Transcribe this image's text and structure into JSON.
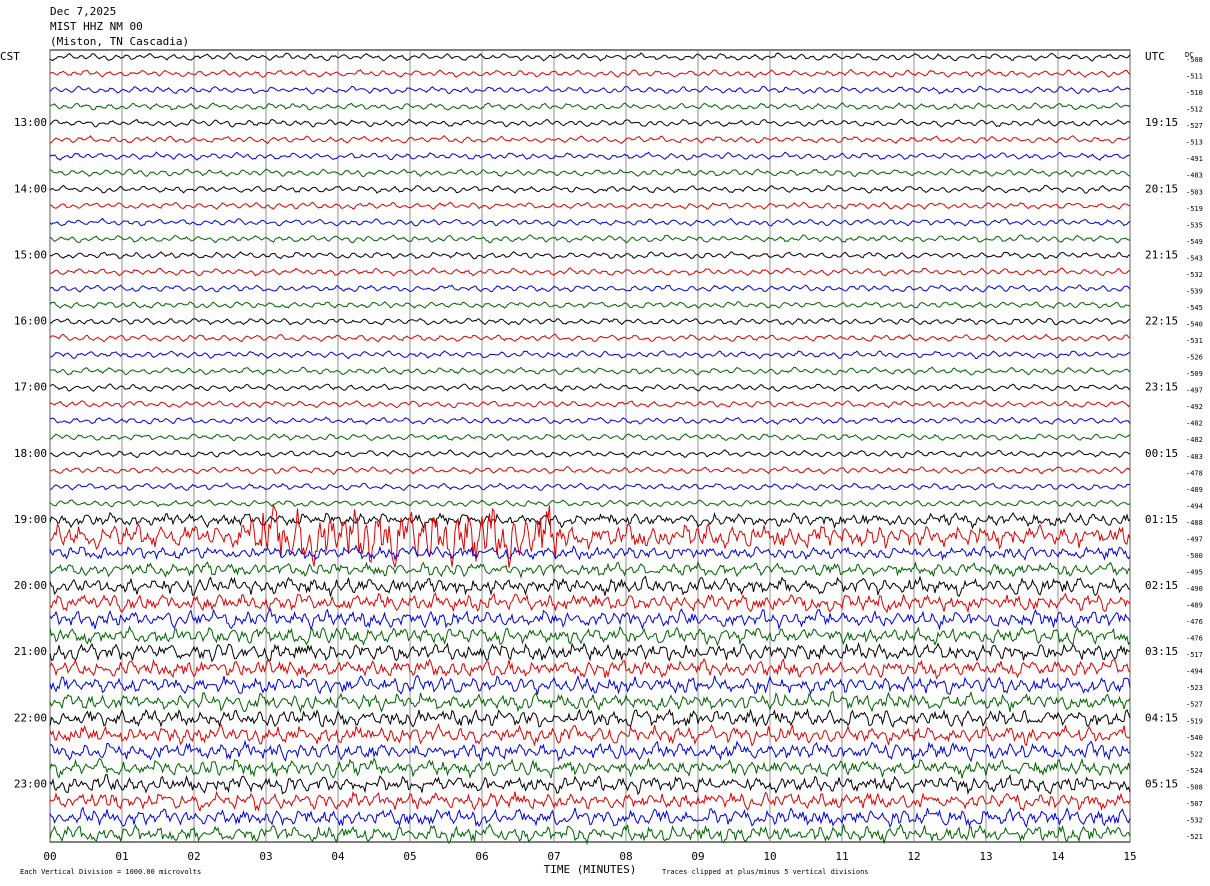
{
  "chart_data": {
    "type": "helicorder",
    "header": [
      "Dec 7,2025",
      "MIST HHZ NM 00",
      "(Miston, TN Cascadia)"
    ],
    "left_labels": [
      "CST",
      null,
      null,
      null,
      "13:00",
      null,
      null,
      null,
      "14:00",
      null,
      null,
      null,
      "15:00",
      null,
      null,
      null,
      "16:00",
      null,
      null,
      null,
      "17:00",
      null,
      null,
      null,
      "18:00",
      null,
      null,
      null,
      "19:00",
      null,
      null,
      null,
      "20:00",
      null,
      null,
      null,
      "21:00",
      null,
      null,
      null,
      "22:00",
      null,
      null,
      null,
      "23:00",
      null,
      null,
      null
    ],
    "right_labels": [
      "UTC",
      null,
      null,
      null,
      "19:15",
      null,
      null,
      null,
      "20:15",
      null,
      null,
      null,
      "21:15",
      null,
      null,
      null,
      "22:15",
      null,
      null,
      null,
      "23:15",
      null,
      null,
      null,
      "00:15",
      null,
      null,
      null,
      "01:15",
      null,
      null,
      null,
      "02:15",
      null,
      null,
      null,
      "03:15",
      null,
      null,
      null,
      "04:15",
      null,
      null,
      null,
      "05:15",
      null,
      null,
      null
    ],
    "dc_title": "DC",
    "dc_values": [
      -508,
      -511,
      -510,
      -512,
      -527,
      -513,
      -491,
      -483,
      -503,
      -519,
      -535,
      -549,
      -543,
      -532,
      -539,
      -545,
      -540,
      -531,
      -526,
      -509,
      -497,
      -492,
      -482,
      -482,
      -483,
      -478,
      -489,
      -494,
      -488,
      -497,
      -500,
      -495,
      -490,
      -489,
      -476,
      -476,
      -517,
      -494,
      -523,
      -527,
      -519,
      -540,
      -522,
      -524,
      -508,
      -507,
      -532,
      -521
    ],
    "trace_colors": [
      "#000000",
      "#e00000",
      "#0000e0",
      "#006400"
    ],
    "xlim": [
      0,
      15
    ],
    "xticks": [
      {
        "value": 0,
        "label": "00"
      },
      {
        "value": 1,
        "label": "01"
      },
      {
        "value": 2,
        "label": "02"
      },
      {
        "value": 3,
        "label": "03"
      },
      {
        "value": 4,
        "label": "04"
      },
      {
        "value": 5,
        "label": "05"
      },
      {
        "value": 6,
        "label": "06"
      },
      {
        "value": 7,
        "label": "07"
      },
      {
        "value": 8,
        "label": "08"
      },
      {
        "value": 9,
        "label": "09"
      },
      {
        "value": 10,
        "label": "10"
      },
      {
        "value": 11,
        "label": "11"
      },
      {
        "value": 12,
        "label": "12"
      },
      {
        "value": 13,
        "label": "13"
      },
      {
        "value": 14,
        "label": "14"
      },
      {
        "value": 15,
        "label": "15"
      }
    ],
    "x_label": "TIME (MINUTES)",
    "scale_note": "Each Vertical Division = 1000.00 microvolts",
    "clip_note": "Traces clipped at plus/minus 5 vertical divisions",
    "grid": true
  }
}
